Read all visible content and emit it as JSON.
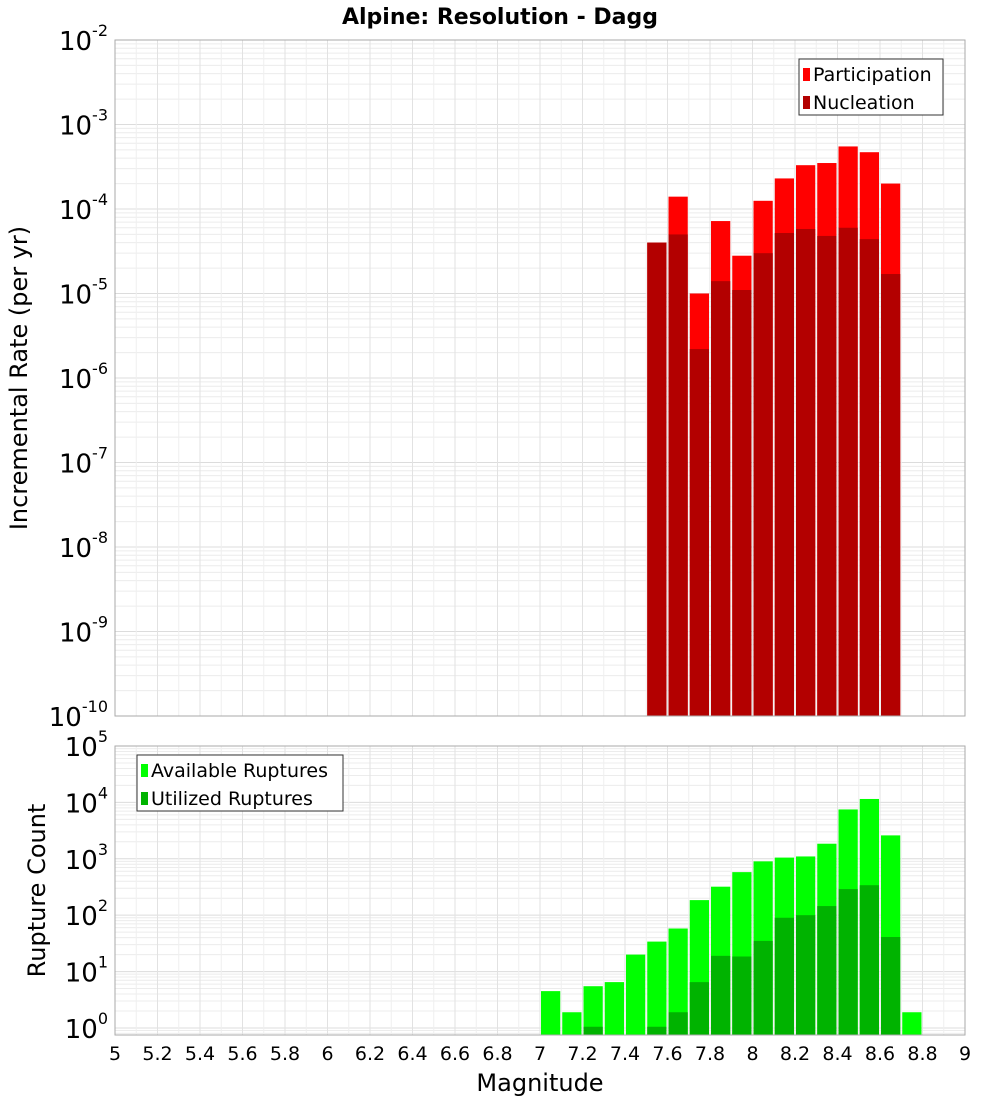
{
  "chart_data": [
    {
      "type": "bar",
      "title": "Alpine: Resolution - Dagg",
      "ylabel": "Incremental Rate (per yr)",
      "xlabel": "",
      "y_scale": "log",
      "ylim": [
        1e-10,
        0.01
      ],
      "xlim": [
        5,
        9
      ],
      "y_ticks": [
        {
          "base": "10",
          "exp": "-10",
          "value": 1e-10
        },
        {
          "base": "10",
          "exp": "-9",
          "value": 1e-09
        },
        {
          "base": "10",
          "exp": "-8",
          "value": 1e-08
        },
        {
          "base": "10",
          "exp": "-7",
          "value": 1e-07
        },
        {
          "base": "10",
          "exp": "-6",
          "value": 1e-06
        },
        {
          "base": "10",
          "exp": "-5",
          "value": 1e-05
        },
        {
          "base": "10",
          "exp": "-4",
          "value": 0.0001
        },
        {
          "base": "10",
          "exp": "-3",
          "value": 0.001
        },
        {
          "base": "10",
          "exp": "-2",
          "value": 0.01
        }
      ],
      "grid": true,
      "legend_position": "top-right",
      "bar_width": 0.1,
      "x": [
        7.55,
        7.65,
        7.75,
        7.85,
        7.95,
        8.05,
        8.15,
        8.25,
        8.35,
        8.45,
        8.55,
        8.65
      ],
      "series": [
        {
          "name": "Participation",
          "color": "#ff0000",
          "values": [
            4e-05,
            0.00014,
            1e-05,
            7.2e-05,
            2.8e-05,
            0.000125,
            0.00023,
            0.00033,
            0.00035,
            0.00055,
            0.00047,
            0.0002
          ]
        },
        {
          "name": "Nucleation",
          "color": "#b30000",
          "values": [
            4e-05,
            5e-05,
            2.2e-06,
            1.4e-05,
            1.1e-05,
            3e-05,
            5.2e-05,
            5.8e-05,
            4.8e-05,
            6e-05,
            4.4e-05,
            1.7e-05
          ]
        }
      ]
    },
    {
      "type": "bar",
      "title": "",
      "ylabel": "Rupture Count",
      "xlabel": "Magnitude",
      "y_scale": "log",
      "ylim": [
        0.75,
        100000.0
      ],
      "xlim": [
        5,
        9
      ],
      "y_ticks": [
        {
          "base": "10",
          "exp": "0",
          "value": 1
        },
        {
          "base": "10",
          "exp": "1",
          "value": 10
        },
        {
          "base": "10",
          "exp": "2",
          "value": 100
        },
        {
          "base": "10",
          "exp": "3",
          "value": 1000
        },
        {
          "base": "10",
          "exp": "4",
          "value": 10000
        },
        {
          "base": "10",
          "exp": "5",
          "value": 100000
        }
      ],
      "x_ticks": [
        "5",
        "5.2",
        "5.4",
        "5.6",
        "5.8",
        "6",
        "6.2",
        "6.4",
        "6.6",
        "6.8",
        "7",
        "7.2",
        "7.4",
        "7.6",
        "7.8",
        "8",
        "8.2",
        "8.4",
        "8.6",
        "8.8",
        "9"
      ],
      "grid": true,
      "legend_position": "top-left",
      "bar_width": 0.1,
      "x": [
        7.05,
        7.15,
        7.25,
        7.35,
        7.45,
        7.55,
        7.65,
        7.75,
        7.85,
        7.95,
        8.05,
        8.15,
        8.25,
        8.35,
        8.45,
        8.55,
        8.65,
        8.75
      ],
      "series": [
        {
          "name": "Available Ruptures",
          "color": "#00ff00",
          "values": [
            4.5,
            1.9,
            5.5,
            6.5,
            20,
            34,
            58,
            185,
            320,
            580,
            900,
            1050,
            1100,
            1850,
            7500,
            11500,
            2600,
            1.9
          ]
        },
        {
          "name": "Utilized Ruptures",
          "color": "#00b300",
          "values": [
            0,
            0,
            1.05,
            0,
            0,
            1.05,
            1.9,
            6.5,
            19,
            18.5,
            35,
            90,
            100,
            145,
            290,
            340,
            41,
            0
          ]
        }
      ]
    }
  ]
}
